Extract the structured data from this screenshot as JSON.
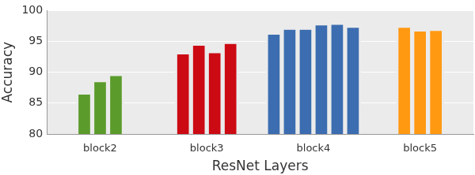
{
  "chart_data": {
    "type": "bar",
    "x_label": "ResNet Layers",
    "y_label": "Accuracy",
    "categories": [
      "block2",
      "block3",
      "block4",
      "block5"
    ],
    "values": [
      [
        86.4,
        88.4,
        89.4
      ],
      [
        92.9,
        94.3,
        93.1,
        94.6
      ],
      [
        96.1,
        96.9,
        96.9,
        97.6,
        97.7,
        97.2
      ],
      [
        97.2,
        96.6,
        96.7
      ]
    ],
    "colors": [
      "#5b9b2b",
      "#cc0a14",
      "#3c6db0",
      "#ff9912"
    ],
    "ylim": [
      80,
      100
    ],
    "yticks": [
      80,
      85,
      90,
      95,
      100
    ],
    "grid": true
  }
}
